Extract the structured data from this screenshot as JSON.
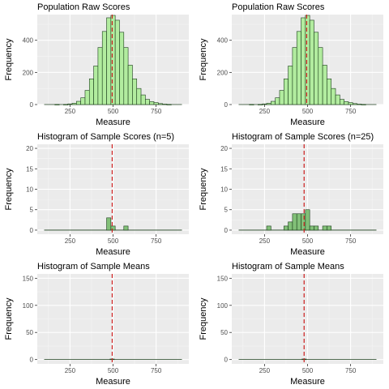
{
  "chart_data": [
    {
      "type": "bar",
      "title": "Population Raw Scores",
      "xlabel": "Measure",
      "ylabel": "Frequency",
      "xlim": [
        60,
        940
      ],
      "ylim": [
        0,
        560
      ],
      "xticks": [
        250,
        500,
        750
      ],
      "yticks": [
        0,
        200,
        400
      ],
      "bin_width": 25,
      "fill_color": "#b2ec9f",
      "mean": 495,
      "bins": [
        {
          "x": 100,
          "count": 0
        },
        {
          "x": 125,
          "count": 0
        },
        {
          "x": 150,
          "count": 0
        },
        {
          "x": 175,
          "count": 1
        },
        {
          "x": 200,
          "count": 0
        },
        {
          "x": 225,
          "count": 1
        },
        {
          "x": 250,
          "count": 4
        },
        {
          "x": 275,
          "count": 8
        },
        {
          "x": 300,
          "count": 20
        },
        {
          "x": 325,
          "count": 42
        },
        {
          "x": 350,
          "count": 88
        },
        {
          "x": 375,
          "count": 160
        },
        {
          "x": 400,
          "count": 240
        },
        {
          "x": 425,
          "count": 355
        },
        {
          "x": 450,
          "count": 455
        },
        {
          "x": 475,
          "count": 540
        },
        {
          "x": 500,
          "count": 555
        },
        {
          "x": 525,
          "count": 525
        },
        {
          "x": 550,
          "count": 450
        },
        {
          "x": 575,
          "count": 355
        },
        {
          "x": 600,
          "count": 245
        },
        {
          "x": 625,
          "count": 160
        },
        {
          "x": 650,
          "count": 100
        },
        {
          "x": 675,
          "count": 60
        },
        {
          "x": 700,
          "count": 32
        },
        {
          "x": 725,
          "count": 18
        },
        {
          "x": 750,
          "count": 12
        },
        {
          "x": 775,
          "count": 6
        },
        {
          "x": 800,
          "count": 3
        },
        {
          "x": 825,
          "count": 1
        },
        {
          "x": 850,
          "count": 0
        },
        {
          "x": 875,
          "count": 0
        },
        {
          "x": 900,
          "count": 0
        }
      ]
    },
    {
      "type": "bar",
      "title": "Population Raw Scores",
      "xlabel": "Measure",
      "ylabel": "Frequency",
      "xlim": [
        60,
        940
      ],
      "ylim": [
        0,
        560
      ],
      "xticks": [
        250,
        500,
        750
      ],
      "yticks": [
        0,
        200,
        400
      ],
      "bin_width": 25,
      "fill_color": "#b2ec9f",
      "mean": 495,
      "bins": [
        {
          "x": 100,
          "count": 0
        },
        {
          "x": 125,
          "count": 0
        },
        {
          "x": 150,
          "count": 0
        },
        {
          "x": 175,
          "count": 1
        },
        {
          "x": 200,
          "count": 0
        },
        {
          "x": 225,
          "count": 1
        },
        {
          "x": 250,
          "count": 4
        },
        {
          "x": 275,
          "count": 8
        },
        {
          "x": 300,
          "count": 20
        },
        {
          "x": 325,
          "count": 42
        },
        {
          "x": 350,
          "count": 88
        },
        {
          "x": 375,
          "count": 160
        },
        {
          "x": 400,
          "count": 240
        },
        {
          "x": 425,
          "count": 355
        },
        {
          "x": 450,
          "count": 455
        },
        {
          "x": 475,
          "count": 540
        },
        {
          "x": 500,
          "count": 555
        },
        {
          "x": 525,
          "count": 525
        },
        {
          "x": 550,
          "count": 450
        },
        {
          "x": 575,
          "count": 355
        },
        {
          "x": 600,
          "count": 245
        },
        {
          "x": 625,
          "count": 160
        },
        {
          "x": 650,
          "count": 100
        },
        {
          "x": 675,
          "count": 60
        },
        {
          "x": 700,
          "count": 32
        },
        {
          "x": 725,
          "count": 18
        },
        {
          "x": 750,
          "count": 12
        },
        {
          "x": 775,
          "count": 6
        },
        {
          "x": 800,
          "count": 3
        },
        {
          "x": 825,
          "count": 1
        },
        {
          "x": 850,
          "count": 0
        },
        {
          "x": 875,
          "count": 0
        },
        {
          "x": 900,
          "count": 0
        }
      ]
    },
    {
      "type": "bar",
      "title": "Histogram of Sample Scores (n=5)",
      "xlabel": "Measure",
      "ylabel": "Frequency",
      "xlim": [
        60,
        940
      ],
      "ylim": [
        -1,
        21
      ],
      "xticks": [
        250,
        500,
        750
      ],
      "yticks": [
        0,
        5,
        10,
        15,
        20
      ],
      "bin_width": 25,
      "fill_color": "#82c078",
      "mean": 495,
      "bins": [
        {
          "x": 475,
          "count": 3
        },
        {
          "x": 500,
          "count": 1
        },
        {
          "x": 575,
          "count": 1
        }
      ]
    },
    {
      "type": "bar",
      "title": "Histogram of Sample Scores (n=25)",
      "xlabel": "Measure",
      "ylabel": "Frequency",
      "xlim": [
        60,
        940
      ],
      "ylim": [
        -1,
        21
      ],
      "xticks": [
        250,
        500,
        750
      ],
      "yticks": [
        0,
        5,
        10,
        15,
        20
      ],
      "bin_width": 25,
      "fill_color": "#82c078",
      "mean": 480,
      "bins": [
        {
          "x": 275,
          "count": 1
        },
        {
          "x": 375,
          "count": 1
        },
        {
          "x": 400,
          "count": 2
        },
        {
          "x": 425,
          "count": 4
        },
        {
          "x": 450,
          "count": 4
        },
        {
          "x": 475,
          "count": 4
        },
        {
          "x": 500,
          "count": 5
        },
        {
          "x": 525,
          "count": 1
        },
        {
          "x": 550,
          "count": 1
        },
        {
          "x": 600,
          "count": 1
        },
        {
          "x": 625,
          "count": 1
        }
      ]
    },
    {
      "type": "bar",
      "title": "Histogram of Sample Means",
      "xlabel": "Measure",
      "ylabel": "Frequency",
      "xlim": [
        60,
        940
      ],
      "ylim": [
        -8,
        158
      ],
      "xticks": [
        250,
        500,
        750
      ],
      "yticks": [
        0,
        50,
        100,
        150
      ],
      "bin_width": 25,
      "fill_color": "#2e7d32",
      "mean": 495,
      "bins": [
        {
          "x": 495,
          "count": 1
        }
      ]
    },
    {
      "type": "bar",
      "title": "Histogram of Sample Means",
      "xlabel": "Measure",
      "ylabel": "Frequency",
      "xlim": [
        60,
        940
      ],
      "ylim": [
        -8,
        158
      ],
      "xticks": [
        250,
        500,
        750
      ],
      "yticks": [
        0,
        50,
        100,
        150
      ],
      "bin_width": 25,
      "fill_color": "#2e7d32",
      "mean": 480,
      "bins": [
        {
          "x": 480,
          "count": 1
        }
      ]
    }
  ],
  "colors": {
    "panel_background": "#ebebeb",
    "grid_major": "#ffffff",
    "grid_minor": "#f5f5f5",
    "bar_outline": "#1a3d1a",
    "mean_line": "#cc1f1f",
    "baseline": "#1a3d1a"
  }
}
